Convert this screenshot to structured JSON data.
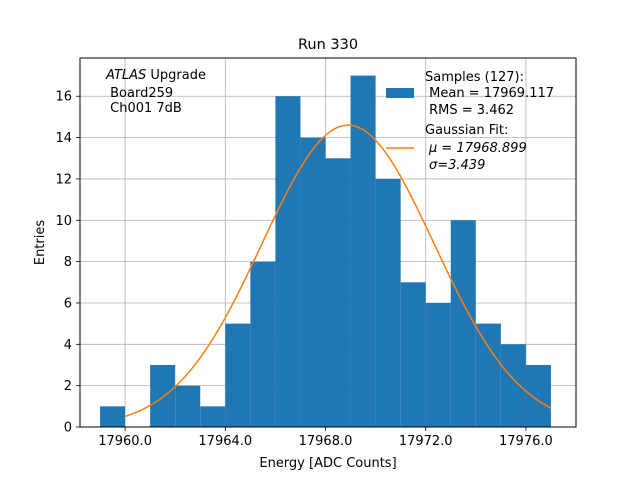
{
  "chart_data": {
    "type": "bar",
    "title": "Run 330",
    "xlabel": "Energy [ADC Counts]",
    "ylabel": "Entries",
    "xlim": [
      17958.2,
      17978.0
    ],
    "ylim": [
      0,
      17.85
    ],
    "grid": true,
    "legend_position": "top-right",
    "xticks": [
      17960.0,
      17964.0,
      17968.0,
      17972.0,
      17976.0
    ],
    "xtick_labels": [
      "17960.0",
      "17964.0",
      "17968.0",
      "17972.0",
      "17976.0"
    ],
    "yticks": [
      0,
      2,
      4,
      6,
      8,
      10,
      12,
      14,
      16
    ],
    "yticks_labels": [
      "0",
      "2",
      "4",
      "6",
      "8",
      "10",
      "12",
      "14",
      "16"
    ],
    "annotation": {
      "italic_part": "ATLAS",
      "line1_rest": " Upgrade",
      "line2": " Board259",
      "line3": " Ch001 7dB"
    },
    "histogram": {
      "name": "Samples (127):",
      "stats_mean": " Mean = 17969.117",
      "stats_rms": " RMS = 3.462",
      "color": "#1f77b4",
      "bin_edges": [
        17959.0,
        17960.0,
        17961.0,
        17962.0,
        17963.0,
        17964.0,
        17965.0,
        17966.0,
        17967.0,
        17968.0,
        17969.0,
        17970.0,
        17971.0,
        17972.0,
        17973.0,
        17974.0,
        17975.0,
        17976.0,
        17977.0
      ],
      "counts": [
        1,
        0,
        3,
        2,
        1,
        5,
        8,
        16,
        14,
        13,
        17,
        12,
        7,
        6,
        10,
        5,
        4,
        3
      ]
    },
    "fit": {
      "name": "Gaussian Fit:",
      "mu_label": "μ = 17968.899",
      "sigma_label": "σ=3.439",
      "mu": 17968.899,
      "sigma": 3.439,
      "amplitude": 14.6,
      "x_range": [
        17960.0,
        17977.0
      ],
      "color": "#ff7f0e"
    }
  }
}
